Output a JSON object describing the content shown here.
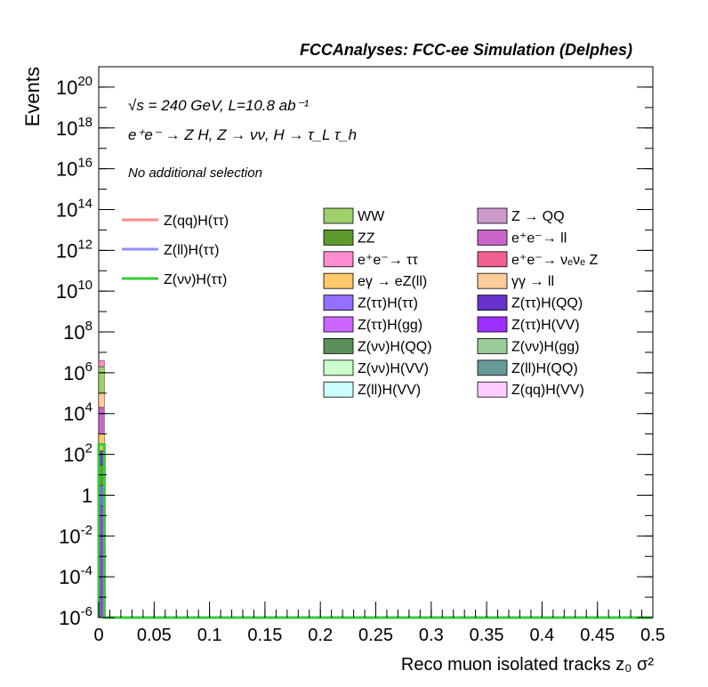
{
  "header": {
    "title": "FCCAnalyses: FCC-ee Simulation (Delphes)"
  },
  "annotations": {
    "energy_line": "√s = 240 GeV, L=10.8 ab⁻¹",
    "process_line": "e⁺e⁻ → Z H, Z → νν, H → τ_L τ_h",
    "selection": "No additional selection"
  },
  "chart_data": {
    "type": "bar",
    "stacked": true,
    "log_y": true,
    "xlabel": "Reco muon isolated tracks z₀ σ²",
    "ylabel": "Events",
    "xlim": [
      0,
      0.5
    ],
    "ylim": [
      1e-06,
      1e+21
    ],
    "x_ticks": [
      "0",
      "0.05",
      "0.1",
      "0.15",
      "0.2",
      "0.25",
      "0.3",
      "0.35",
      "0.4",
      "0.45",
      "0.5"
    ],
    "y_ticks": [
      {
        "base": "10",
        "exp": "-6",
        "value": 1e-06
      },
      {
        "base": "10",
        "exp": "-4",
        "value": 0.0001
      },
      {
        "base": "10",
        "exp": "-2",
        "value": 0.01
      },
      {
        "base": "1",
        "exp": "",
        "value": 1
      },
      {
        "base": "10",
        "exp": "2",
        "value": 100.0
      },
      {
        "base": "10",
        "exp": "4",
        "value": 10000.0
      },
      {
        "base": "10",
        "exp": "6",
        "value": 1000000.0
      },
      {
        "base": "10",
        "exp": "8",
        "value": 100000000.0
      },
      {
        "base": "10",
        "exp": "10",
        "value": 10000000000.0
      },
      {
        "base": "10",
        "exp": "12",
        "value": 1000000000000.0
      },
      {
        "base": "10",
        "exp": "14",
        "value": 100000000000000.0
      },
      {
        "base": "10",
        "exp": "16",
        "value": 1e+16
      },
      {
        "base": "10",
        "exp": "18",
        "value": 1e+18
      },
      {
        "base": "10",
        "exp": "20",
        "value": 1e+20
      }
    ],
    "bin": [
      0,
      0.005
    ],
    "background_stack": [
      {
        "name": "Z(νν)H(QQ)",
        "color": "#5b8f5b",
        "top": 1e-06
      },
      {
        "name": "Z(ττ)H(VV)",
        "color": "#9b30ff",
        "top": 0.3
      },
      {
        "name": "Z(ττ)H(ττ)",
        "color": "#7a63ff",
        "top": 3
      },
      {
        "name": "ZZ",
        "color": "#5e9b2f",
        "top": 30
      },
      {
        "name": "Z(ττ)H(QQ)",
        "color": "#6a35d0",
        "top": 150
      },
      {
        "name": "eγ → eZ(ll)",
        "color": "#ffc96a",
        "top": 1000.0
      },
      {
        "name": "e⁺e⁻→ ll",
        "color": "#c964c9",
        "top": 20000.0
      },
      {
        "name": "γγ → ll",
        "color": "#ffcc99",
        "top": 100000.0
      },
      {
        "name": "WW",
        "color": "#9dcf6a",
        "top": 2000000.0
      },
      {
        "name": "e⁺e⁻→ ττ",
        "color": "#ff8ccc",
        "top": 4000000.0
      }
    ],
    "signals": [
      {
        "name": "Z(qq)H(ττ)",
        "color": "#ff8a8a",
        "value": 300
      },
      {
        "name": "Z(ll)H(ττ)",
        "color": "#8f8fff",
        "value": 300
      },
      {
        "name": "Z(νν)H(ττ)",
        "color": "#33cc33",
        "value": 300
      }
    ],
    "legend_signals": [
      {
        "name": "Z(qq)H(ττ)",
        "color": "#ff8a8a"
      },
      {
        "name": "Z(ll)H(ττ)",
        "color": "#8f8fff"
      },
      {
        "name": "Z(νν)H(ττ)",
        "color": "#33cc33"
      }
    ],
    "legend_backgrounds": [
      {
        "name": "WW",
        "color": "#9dcf6a"
      },
      {
        "name": "Z → QQ",
        "color": "#cc99cc"
      },
      {
        "name": "ZZ",
        "color": "#5e9b2f"
      },
      {
        "name": "e⁺e⁻→ ll",
        "color": "#c964c9"
      },
      {
        "name": "e⁺e⁻→ ττ",
        "color": "#ff8ccc"
      },
      {
        "name": "e⁺e⁻→ νₑνₑ Z",
        "color": "#f06090"
      },
      {
        "name": "eγ → eZ(ll)",
        "color": "#ffc96a"
      },
      {
        "name": "γγ → ll",
        "color": "#ffcc99"
      },
      {
        "name": "Z(ττ)H(ττ)",
        "color": "#9370ff"
      },
      {
        "name": "Z(ττ)H(QQ)",
        "color": "#6633cc"
      },
      {
        "name": "Z(ττ)H(gg)",
        "color": "#cc66ff"
      },
      {
        "name": "Z(ττ)H(VV)",
        "color": "#9b30ff"
      },
      {
        "name": "Z(νν)H(QQ)",
        "color": "#5b8f5b"
      },
      {
        "name": "Z(νν)H(gg)",
        "color": "#99cc99"
      },
      {
        "name": "Z(νν)H(VV)",
        "color": "#ccffcc"
      },
      {
        "name": "Z(ll)H(QQ)",
        "color": "#669999"
      },
      {
        "name": "Z(ll)H(VV)",
        "color": "#ccffff"
      },
      {
        "name": "Z(qq)H(VV)",
        "color": "#ffccff"
      }
    ]
  }
}
